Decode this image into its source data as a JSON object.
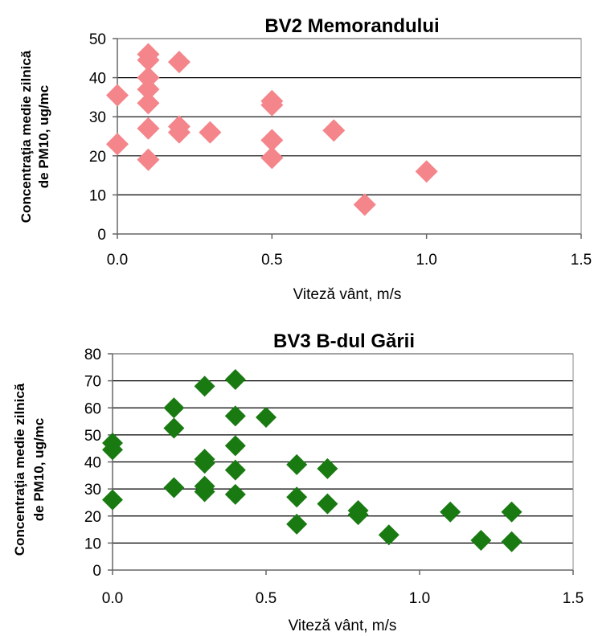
{
  "chart_data": [
    {
      "type": "scatter",
      "title": "BV2 Memorandului",
      "xlabel": "Viteză vânt,  m/s",
      "ylabel_lines": [
        "Concentraţia medie zilnică",
        "de PM10,  ug/mc"
      ],
      "xlim": [
        0,
        1.5
      ],
      "ylim": [
        0,
        50
      ],
      "xticks": [
        "0.0",
        "0.5",
        "1.0",
        "1.5"
      ],
      "yticks": [
        "0",
        "10",
        "20",
        "30",
        "40",
        "50"
      ],
      "grid": "horizontal",
      "marker": "diamond",
      "color": "#f4858a",
      "points": [
        [
          0.0,
          35.5
        ],
        [
          0.0,
          23
        ],
        [
          0.1,
          46
        ],
        [
          0.1,
          44.5
        ],
        [
          0.1,
          40
        ],
        [
          0.1,
          37
        ],
        [
          0.1,
          33.5
        ],
        [
          0.1,
          27
        ],
        [
          0.1,
          19
        ],
        [
          0.2,
          44
        ],
        [
          0.2,
          27.5
        ],
        [
          0.2,
          26
        ],
        [
          0.3,
          26
        ],
        [
          0.5,
          34
        ],
        [
          0.5,
          33
        ],
        [
          0.5,
          24
        ],
        [
          0.5,
          19.5
        ],
        [
          0.7,
          26.5
        ],
        [
          0.8,
          7.5
        ],
        [
          1.0,
          16
        ]
      ]
    },
    {
      "type": "scatter",
      "title": "BV3 B-dul Gării",
      "xlabel": "Viteză vânt,  m/s",
      "ylabel_lines": [
        "Concentraţia medie zilnică",
        "de PM10, ug/mc"
      ],
      "xlim": [
        0,
        1.5
      ],
      "ylim": [
        0,
        80
      ],
      "xticks": [
        "0.0",
        "0.5",
        "1.0",
        "1.5"
      ],
      "yticks": [
        "0",
        "10",
        "20",
        "30",
        "40",
        "50",
        "60",
        "70",
        "80"
      ],
      "grid": "horizontal",
      "marker": "diamond",
      "color": "#1a7a12",
      "points": [
        [
          0.0,
          47
        ],
        [
          0.0,
          44.5
        ],
        [
          0.0,
          26
        ],
        [
          0.2,
          60
        ],
        [
          0.2,
          52.5
        ],
        [
          0.2,
          30.5
        ],
        [
          0.3,
          68
        ],
        [
          0.3,
          41
        ],
        [
          0.3,
          39.5
        ],
        [
          0.3,
          31
        ],
        [
          0.3,
          29
        ],
        [
          0.4,
          70.5
        ],
        [
          0.4,
          57
        ],
        [
          0.4,
          46
        ],
        [
          0.4,
          37
        ],
        [
          0.4,
          28
        ],
        [
          0.5,
          56.5
        ],
        [
          0.6,
          39
        ],
        [
          0.6,
          27
        ],
        [
          0.6,
          17
        ],
        [
          0.7,
          37.5
        ],
        [
          0.7,
          24.5
        ],
        [
          0.8,
          22
        ],
        [
          0.8,
          20.5
        ],
        [
          0.9,
          13
        ],
        [
          1.1,
          21.5
        ],
        [
          1.2,
          11
        ],
        [
          1.3,
          21.5
        ],
        [
          1.3,
          10.5
        ]
      ]
    }
  ]
}
